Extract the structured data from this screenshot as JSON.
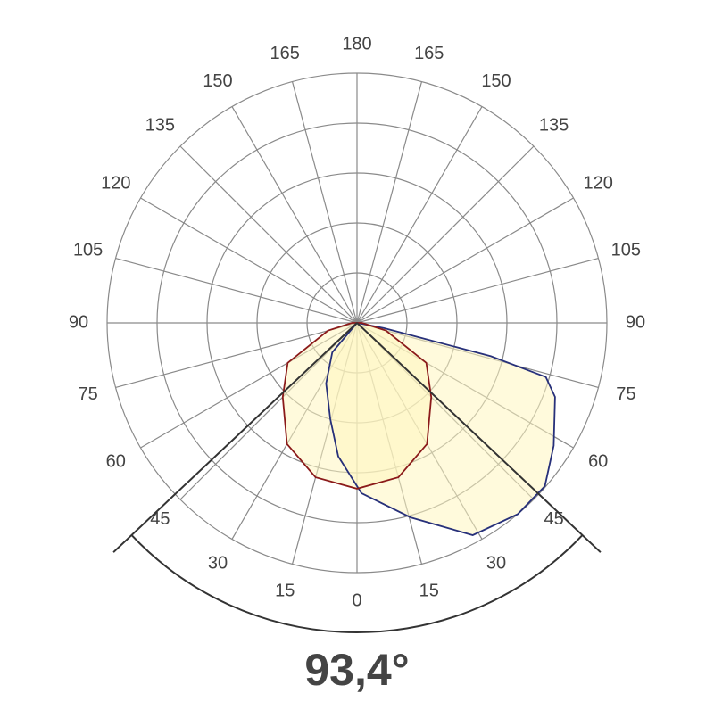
{
  "chart_data": {
    "type": "polar",
    "rlim": [
      0,
      5
    ],
    "rticks": [
      1,
      2,
      3,
      4,
      5
    ],
    "grid": true,
    "angle_ticks": [
      {
        "value": -165,
        "label": "165"
      },
      {
        "value": -150,
        "label": "150"
      },
      {
        "value": -135,
        "label": "135"
      },
      {
        "value": -120,
        "label": "120"
      },
      {
        "value": -105,
        "label": "105"
      },
      {
        "value": -90,
        "label": "90"
      },
      {
        "value": -75,
        "label": "75"
      },
      {
        "value": -60,
        "label": "60"
      },
      {
        "value": -45,
        "label": "45"
      },
      {
        "value": -30,
        "label": "30"
      },
      {
        "value": -15,
        "label": "15"
      },
      0,
      15,
      30,
      45,
      60,
      75,
      90,
      105,
      120,
      135,
      150,
      165,
      180
    ],
    "series": [
      {
        "color": "#27307a",
        "angles": [
          -90,
          -40,
          -27,
          -15.5,
          -8,
          1.5,
          15.4,
          28.6,
          40,
          49,
          58,
          69.5,
          74,
          76,
          79,
          90
        ],
        "values": [
          0,
          0.77,
          1.36,
          2.0,
          2.7,
          3.41,
          4.04,
          4.84,
          5.0,
          4.98,
          4.64,
          4.23,
          3.93,
          2.76,
          0.55,
          0
        ]
      },
      {
        "color": "#8b1a1a",
        "angles": [
          -90,
          -75,
          -60,
          -45,
          -30,
          -15,
          0,
          15,
          30,
          45,
          60,
          75,
          90
        ],
        "values": [
          0.1,
          0.6,
          1.6,
          2.1,
          2.8,
          3.2,
          3.32,
          3.2,
          2.8,
          2.1,
          1.6,
          0.6,
          0.1
        ]
      }
    ],
    "fill_color": "#fff6c0",
    "beam_angle": {
      "value": 93.4,
      "label": "93,4°"
    }
  }
}
